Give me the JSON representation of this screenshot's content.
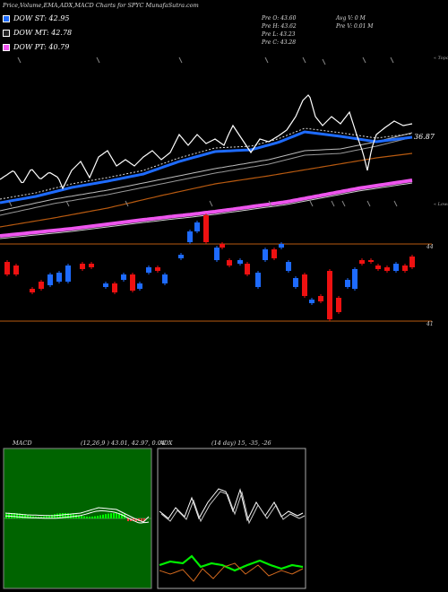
{
  "header": {
    "title": "Price,Volume,EMA,ADX,MACD Charts for SPYC",
    "site": "MunafaSutra.com"
  },
  "legend": [
    {
      "label": "DOW ST: 42.95",
      "color": "#1e6bff"
    },
    {
      "label": "DOW MT: 42.78",
      "color": "#222222"
    },
    {
      "label": "DOW PT: 40.79",
      "color": "#ee55ee"
    }
  ],
  "ohlc": {
    "open": "Pre   O: 43.60",
    "high": "Pre   H: 43.62",
    "low": "Pre   L: 43.23",
    "close": "Pre   C: 43.28",
    "avg_vol": "Avg V: 0  M",
    "pre_vol": "Pre   V: 0.01 M"
  },
  "colors": {
    "ema_short": "#1e6bff",
    "ema_mid": "#cccccc",
    "ema_long": "#b85a10",
    "ema_pt": "#ee55ee",
    "candle_up": "#1e6bff",
    "candle_down": "#ee1111",
    "level_line": "#b85a10"
  },
  "price_panel": {
    "right_top_label": "« Topo",
    "right_bottom_label": "« Lows",
    "ema_value_label": "36.87",
    "level_upper_label": "44",
    "level_lower_label": "41"
  },
  "macd_panel": {
    "title": "MACD",
    "params": "(12,26,9 ) 43.01, 42.97, 0.04"
  },
  "adx_panel": {
    "title": "ADX",
    "params": "(14 day) 15, -35, -26"
  },
  "chart_data": {
    "type": "candlestick",
    "symbol": "SPYC",
    "levels": [
      44,
      41
    ],
    "ema_last": 36.87,
    "series": [
      {
        "name": "DOW ST",
        "last": 42.95
      },
      {
        "name": "DOW MT",
        "last": 42.78
      },
      {
        "name": "DOW PT",
        "last": 40.79
      }
    ],
    "macd": {
      "params": [
        12,
        26,
        9
      ],
      "values": [
        43.01,
        42.97,
        0.04
      ]
    },
    "adx": {
      "period": 14,
      "values": [
        15,
        -35,
        -26
      ]
    }
  }
}
